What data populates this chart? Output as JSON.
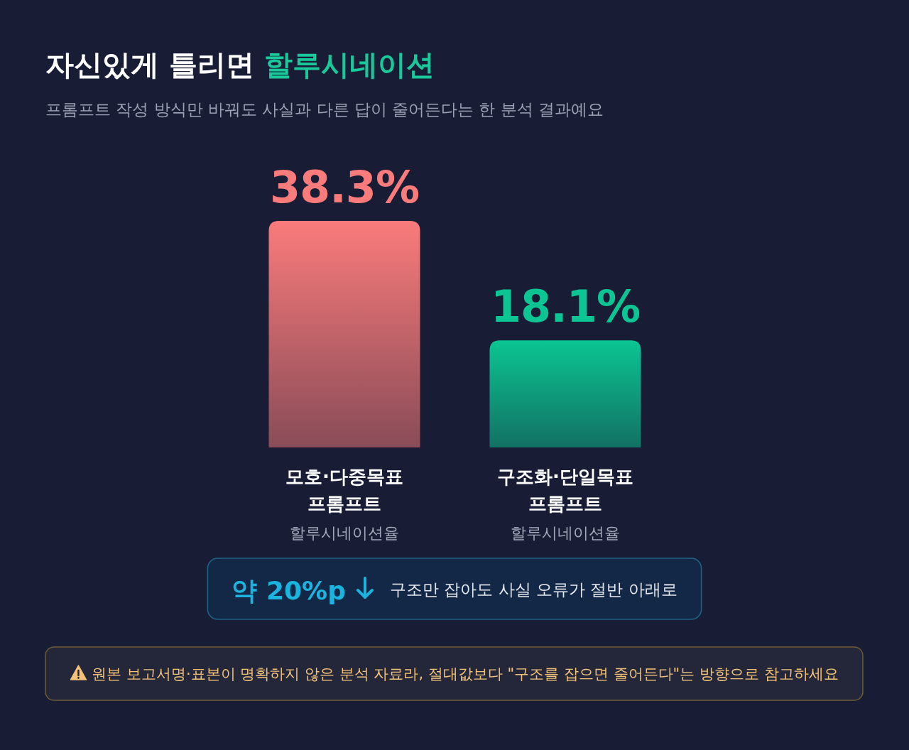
{
  "chart_data": {
    "type": "bar",
    "title": "자신있게 틀리면 할루시네이션",
    "subtitle": "프롬프트 작성 방식만 바꿔도 사실과 다른 답이 줄어든다는 한 분석 결과예요",
    "categories": [
      "모호·다중목표 프롬프트",
      "구조화·단일목표 프롬프트"
    ],
    "values": [
      38.3,
      18.1
    ],
    "colors": [
      "#fa7b7b",
      "#0bc592"
    ],
    "value_labels": [
      "38.3%",
      "18.1%"
    ],
    "annotations": [
      "할루시네이션율",
      "할루시네이션율",
      "약 20%p",
      "구조만 잡아도 사실 오류가 절반 아래로",
      "원본 보고서명·표본이 명확하지 않은 분석 자료라, 절대값보다 \"구조를 잡으면 줄어든다\"는 방향으로 참고하세요"
    ]
  }
}
